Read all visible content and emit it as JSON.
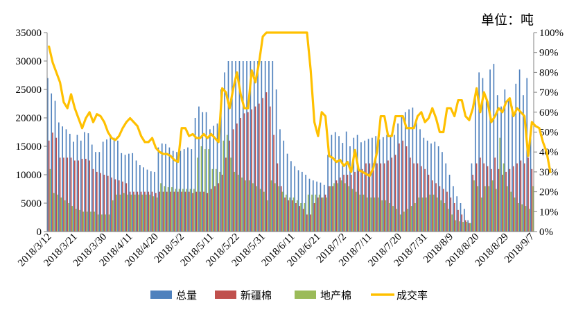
{
  "unit_label": "单位：吨",
  "chart_data": {
    "type": "bar",
    "title": "",
    "legend_position": "bottom",
    "grid": false,
    "y_left_lim": [
      0,
      35000
    ],
    "y_left_ticks": [
      "0",
      "5000",
      "10000",
      "15000",
      "20000",
      "25000",
      "30000",
      "35000"
    ],
    "y_right_lim": [
      0,
      100
    ],
    "y_right_ticks": [
      "0%",
      "10%",
      "20%",
      "30%",
      "40%",
      "50%",
      "60%",
      "70%",
      "80%",
      "90%",
      "100%"
    ],
    "x_tick_labels": [
      "2018/3/12",
      "2018/3/21",
      "2018/3/30",
      "2018/4/11",
      "2018/4/20",
      "2018/5/2",
      "2018/5/11",
      "2018/5/22",
      "2018/5/31",
      "2018/6/11",
      "2018/6/21",
      "2018/7/2",
      "2018/7/11",
      "2018/7/20",
      "2018/7/31",
      "2018/8/9",
      "2018/8/20",
      "2018/8/29",
      "2018/9/7"
    ],
    "series": [
      {
        "name": "总量",
        "type": "bar",
        "axis": "left",
        "color": "#4F81BD",
        "values": [
          27000,
          24300,
          23000,
          19200,
          18500,
          18000,
          17200,
          15800,
          17000,
          16000,
          17500,
          17300,
          15300,
          14000,
          14000,
          15800,
          16200,
          17000,
          16500,
          16000,
          13800,
          13500,
          13700,
          13800,
          12500,
          11700,
          11300,
          10900,
          10600,
          10500,
          14800,
          15500,
          15400,
          14800,
          14200,
          14000,
          14200,
          14500,
          14800,
          14500,
          20000,
          22000,
          21000,
          21000,
          18000,
          18600,
          19000,
          25000,
          28000,
          30000,
          30000,
          30000,
          30000,
          30000,
          30000,
          30000,
          30000,
          30000,
          30000,
          30000,
          30000,
          30000,
          25000,
          18000,
          16000,
          13700,
          12400,
          11500,
          10800,
          10500,
          10000,
          9300,
          9000,
          8800,
          8600,
          8200,
          13500,
          17000,
          17500,
          16800,
          15600,
          17600,
          15000,
          16500,
          17000,
          15700,
          16000,
          16300,
          16500,
          16800,
          16200,
          16600,
          17000,
          16800,
          17000,
          19000,
          20500,
          21000,
          21500,
          21800,
          19800,
          18000,
          16500,
          16000,
          15500,
          15800,
          15000,
          14000,
          12000,
          10000,
          8000,
          6200,
          5000,
          4000,
          2000,
          12000,
          24000,
          28000,
          27000,
          23000,
          28500,
          29500,
          24000,
          22000,
          25000,
          23000,
          22000,
          26000,
          28500,
          24000,
          27000,
          16500
        ]
      },
      {
        "name": "新疆棉",
        "type": "bar",
        "axis": "left",
        "color": "#C0504D",
        "values": [
          16000,
          17400,
          16500,
          13000,
          13000,
          13000,
          13000,
          12500,
          12500,
          12800,
          12800,
          12500,
          11000,
          10500,
          10300,
          10000,
          9800,
          9500,
          9200,
          9000,
          8800,
          8500,
          7000,
          7000,
          7000,
          7000,
          7000,
          7000,
          7000,
          6800,
          7000,
          7000,
          7000,
          7000,
          7000,
          7000,
          7000,
          7000,
          7000,
          6800,
          7000,
          7000,
          7000,
          6800,
          7500,
          8000,
          8500,
          10000,
          13000,
          16000,
          18000,
          19000,
          20000,
          20800,
          21000,
          21500,
          22000,
          22500,
          23500,
          24500,
          22000,
          17000,
          12000,
          8000,
          6000,
          5500,
          5500,
          5000,
          4500,
          4000,
          3000,
          3000,
          5000,
          6000,
          6000,
          6500,
          8000,
          8000,
          9000,
          9500,
          10000,
          10000,
          10000,
          10500,
          11000,
          11000,
          12000,
          12000,
          12000,
          12000,
          12000,
          12000,
          12500,
          13000,
          13500,
          15500,
          16000,
          15000,
          13000,
          12000,
          12000,
          11500,
          11000,
          10000,
          9000,
          8500,
          8000,
          7500,
          7000,
          6000,
          5000,
          3800,
          3000,
          2000,
          1500,
          10000,
          12000,
          13000,
          12000,
          11500,
          11000,
          13000,
          11000,
          10000,
          10500,
          11000,
          11500,
          12000,
          12500,
          12000,
          13000,
          11000
        ]
      },
      {
        "name": "地产棉",
        "type": "bar",
        "axis": "left",
        "color": "#9BBB59",
        "values": [
          11000,
          6800,
          6500,
          6000,
          5500,
          5000,
          4500,
          4000,
          3800,
          3500,
          3500,
          3500,
          3500,
          3000,
          3000,
          3000,
          3000,
          5500,
          6500,
          6500,
          6800,
          6500,
          6500,
          6500,
          6500,
          6500,
          6500,
          6500,
          6200,
          6000,
          8500,
          8000,
          7800,
          7800,
          7500,
          7500,
          7500,
          7500,
          7500,
          7500,
          13000,
          15000,
          14500,
          14500,
          11000,
          11000,
          10500,
          16000,
          17000,
          13000,
          10500,
          10000,
          9500,
          9000,
          9000,
          8500,
          8000,
          7500,
          7000,
          5500,
          9000,
          8500,
          8000,
          7000,
          6500,
          6000,
          6000,
          5500,
          5000,
          5000,
          6500,
          6500,
          6500,
          6500,
          6000,
          6000,
          8000,
          8500,
          8500,
          9000,
          8500,
          8000,
          7500,
          7000,
          6500,
          6500,
          6000,
          6000,
          6000,
          6000,
          5500,
          5500,
          5000,
          4500,
          4000,
          3000,
          3500,
          4000,
          4500,
          5000,
          6000,
          6000,
          6000,
          6500,
          6500,
          6000,
          5500,
          5000,
          4000,
          3000,
          2000,
          1800,
          1700,
          1700,
          1500,
          9000,
          8000,
          6000,
          8000,
          8000,
          9000,
          7500,
          16500,
          12000,
          8000,
          7000,
          6000,
          5000,
          4800,
          4500,
          4000,
          8000
        ]
      },
      {
        "name": "成交率",
        "type": "line",
        "axis": "right",
        "color": "#FFC000",
        "values": [
          93,
          85,
          80,
          75,
          65,
          62,
          69,
          62,
          57,
          52,
          57,
          60,
          55,
          59,
          58,
          55,
          50,
          47,
          46,
          48,
          52,
          55,
          57,
          55,
          53,
          48,
          45,
          45,
          47,
          42,
          40,
          39,
          39,
          38,
          36,
          35,
          52,
          52,
          48,
          49,
          47,
          47,
          49,
          47,
          49,
          47,
          45,
          72,
          70,
          62,
          72,
          80,
          69,
          62,
          62,
          81,
          75,
          85,
          98,
          100,
          100,
          100,
          100,
          100,
          100,
          100,
          100,
          100,
          100,
          100,
          100,
          81,
          55,
          48,
          60,
          58,
          38,
          37,
          35,
          36,
          33,
          35,
          30,
          41,
          31,
          30,
          29,
          28,
          32,
          40,
          58,
          58,
          48,
          48,
          58,
          58,
          58,
          52,
          52,
          52,
          58,
          60,
          55,
          57,
          62,
          57,
          50,
          50,
          62,
          62,
          58,
          66,
          66,
          58,
          56,
          62,
          72,
          60,
          70,
          65,
          55,
          58,
          62,
          60,
          65,
          67,
          58,
          62,
          60,
          58,
          38,
          55,
          53,
          52,
          45,
          40,
          30
        ]
      }
    ]
  }
}
